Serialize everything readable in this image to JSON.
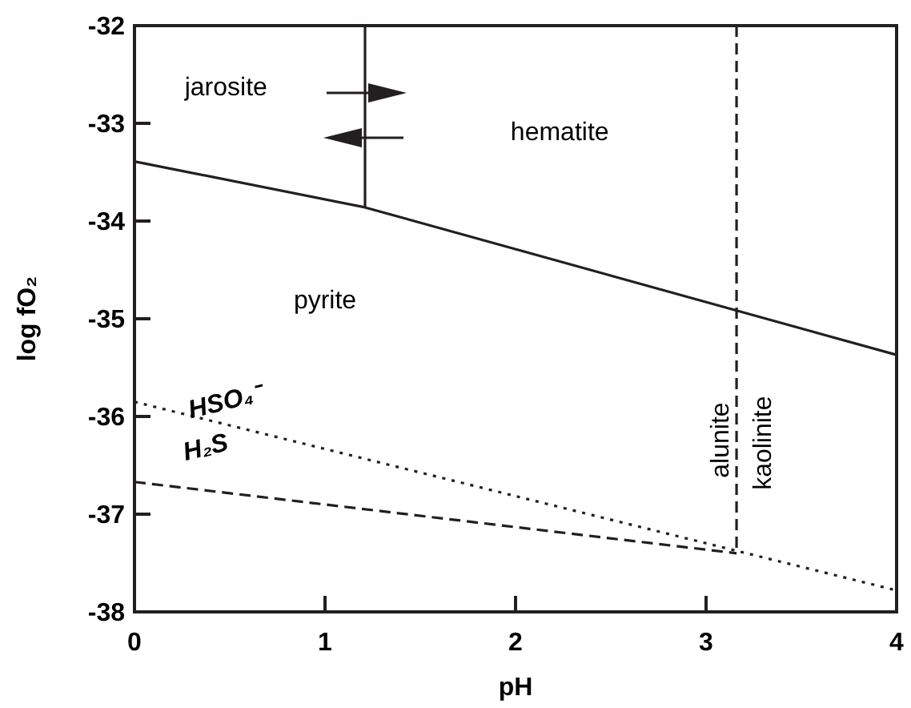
{
  "chart_data": {
    "type": "line",
    "xlabel": "pH",
    "ylabel": "log fO₂",
    "xlim": [
      0,
      4
    ],
    "ylim": [
      -38,
      -32
    ],
    "xticks": [
      0,
      1,
      2,
      3,
      4
    ],
    "yticks": [
      -38,
      -37,
      -36,
      -35,
      -34,
      -33,
      -32
    ],
    "grid": false,
    "marker": "none",
    "series": [
      {
        "color": "#231f20",
        "line_style": "solid",
        "x": [
          0,
          1.21,
          4
        ],
        "values": [
          -33.39,
          -33.86,
          -35.37
        ]
      },
      {
        "color": "#231f20",
        "line_style": "solid",
        "x": [
          1.21,
          1.21
        ],
        "values": [
          -32,
          -33.86
        ]
      },
      {
        "color": "#231f20",
        "line_style": "dashed",
        "x": [
          3.16,
          3.16
        ],
        "values": [
          -32,
          -37.4
        ]
      },
      {
        "color": "#231f20",
        "line_style": "dotted",
        "x": [
          0,
          4
        ],
        "values": [
          -35.85,
          -37.78
        ]
      },
      {
        "color": "#231f20",
        "line_style": "dashed",
        "x": [
          0,
          3.16
        ],
        "values": [
          -36.67,
          -37.4
        ]
      }
    ],
    "annotations": [
      "jarosite",
      "hematite",
      "pyrite",
      "HSO₄⁻",
      "H₂S",
      "alunite",
      "kaolinite"
    ]
  }
}
